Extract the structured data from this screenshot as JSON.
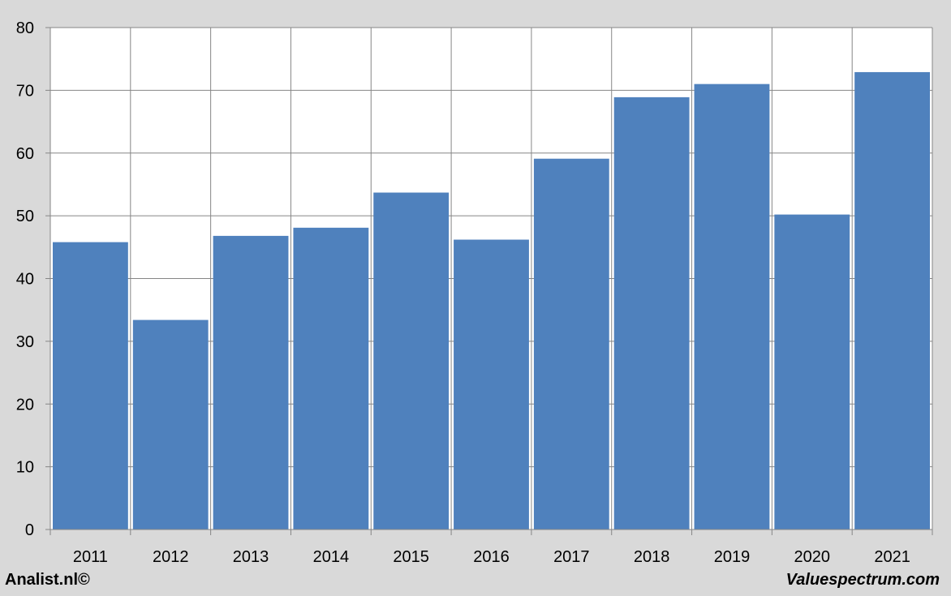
{
  "chart_data": {
    "type": "bar",
    "categories": [
      "2011",
      "2012",
      "2013",
      "2014",
      "2015",
      "2016",
      "2017",
      "2018",
      "2019",
      "2020",
      "2021"
    ],
    "values": [
      45.8,
      33.4,
      46.8,
      48.1,
      53.7,
      46.2,
      59.1,
      68.9,
      71.0,
      50.2,
      72.9
    ],
    "title": "",
    "xlabel": "",
    "ylabel": "",
    "ylim": [
      0,
      80
    ],
    "yticks": [
      "0",
      "10",
      "20",
      "30",
      "40",
      "50",
      "60",
      "70",
      "80"
    ],
    "grid": true,
    "bar_color": "#4f81bd",
    "plot_background": "#ffffff",
    "grid_color": "#868686"
  },
  "footer": {
    "left_text": "Analist.nl©",
    "right_text": "Valuespectrum.com"
  }
}
